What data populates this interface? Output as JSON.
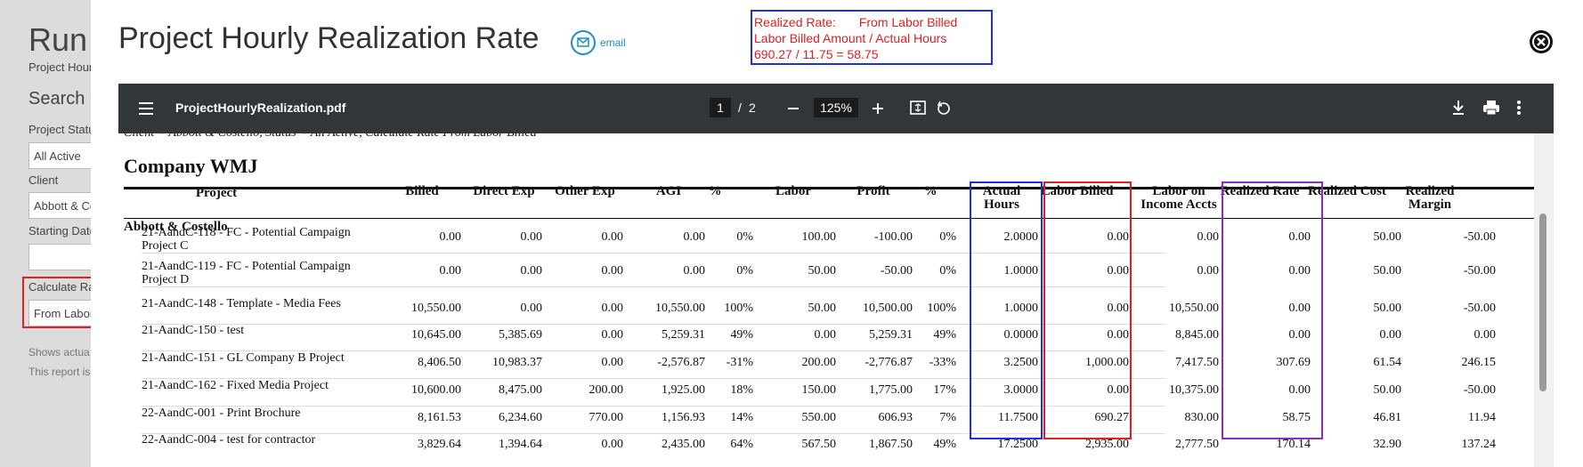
{
  "background": {
    "title": "Run",
    "subtitle": "Project Hour",
    "search_heading": "Search C",
    "fields": [
      {
        "label": "Project Statu",
        "value": "All Active"
      },
      {
        "label": "Client",
        "value": "Abbott & Co"
      },
      {
        "label": "Starting Date"
      },
      {
        "label": "Calculate Ra",
        "value": "From Labor"
      }
    ],
    "notes": [
      "Shows actua",
      "This report is"
    ]
  },
  "modal": {
    "title": "Project Hourly Realization Rate",
    "email": "email",
    "annotation": {
      "label": "Realized Rate:",
      "source": "From Labor Billed",
      "formula": "Labor Billed Amount / Actual Hours",
      "example": "690.27 / 11.75 = 58.75"
    },
    "viewer": {
      "file": "ProjectHourlyRealization.pdf",
      "page": "1",
      "separator": "/",
      "pages": "2",
      "zoom": "125%"
    },
    "report": {
      "criteria": "Client = Abbott & Costello, Status = All Active, Calculate Rate From Labor Billed",
      "company": "Company WMJ",
      "headers": [
        "Project",
        "Billed",
        "Direct Exp",
        "Other Exp",
        "AGI",
        "%",
        "Labor",
        "Profit",
        "%",
        "Actual Hours",
        "Labor Billed",
        "Labor on Income Accts",
        "Realized Rate",
        "Realized Cost",
        "Realized Margin"
      ],
      "group": "Abbott & Costello",
      "rows": [
        [
          "21-AandC-118 - FC - Potential Campaign Project C",
          "0.00",
          "0.00",
          "0.00",
          "0.00",
          "0%",
          "100.00",
          "-100.00",
          "0%",
          "2.0000",
          "0.00",
          "0.00",
          "0.00",
          "50.00",
          "-50.00"
        ],
        [
          "21-AandC-119 - FC - Potential Campaign Project D",
          "0.00",
          "0.00",
          "0.00",
          "0.00",
          "0%",
          "50.00",
          "-50.00",
          "0%",
          "1.0000",
          "0.00",
          "0.00",
          "0.00",
          "50.00",
          "-50.00"
        ],
        [
          "21-AandC-148 - Template - Media Fees",
          "10,550.00",
          "0.00",
          "0.00",
          "10,550.00",
          "100%",
          "50.00",
          "10,500.00",
          "100%",
          "1.0000",
          "0.00",
          "10,550.00",
          "0.00",
          "50.00",
          "-50.00"
        ],
        [
          "21-AandC-150 - test",
          "10,645.00",
          "5,385.69",
          "0.00",
          "5,259.31",
          "49%",
          "0.00",
          "5,259.31",
          "49%",
          "0.0000",
          "0.00",
          "8,845.00",
          "0.00",
          "0.00",
          "0.00"
        ],
        [
          "21-AandC-151 - GL Company B Project",
          "8,406.50",
          "10,983.37",
          "0.00",
          "-2,576.87",
          "-31%",
          "200.00",
          "-2,776.87",
          "-33%",
          "3.2500",
          "1,000.00",
          "7,417.50",
          "307.69",
          "61.54",
          "246.15"
        ],
        [
          "21-AandC-162 - Fixed Media Project",
          "10,600.00",
          "8,475.00",
          "200.00",
          "1,925.00",
          "18%",
          "150.00",
          "1,775.00",
          "17%",
          "3.0000",
          "0.00",
          "10,375.00",
          "0.00",
          "50.00",
          "-50.00"
        ],
        [
          "22-AandC-001 - Print Brochure",
          "8,161.53",
          "6,234.60",
          "770.00",
          "1,156.93",
          "14%",
          "550.00",
          "606.93",
          "7%",
          "11.7500",
          "690.27",
          "830.00",
          "58.75",
          "46.81",
          "11.94"
        ],
        [
          "22-AandC-004 - test for contractor",
          "3,829.64",
          "1,394.64",
          "0.00",
          "2,435.00",
          "64%",
          "567.50",
          "1,867.50",
          "49%",
          "17.2500",
          "2,935.00",
          "2,777.50",
          "170.14",
          "32.90",
          "137.24"
        ]
      ]
    }
  }
}
